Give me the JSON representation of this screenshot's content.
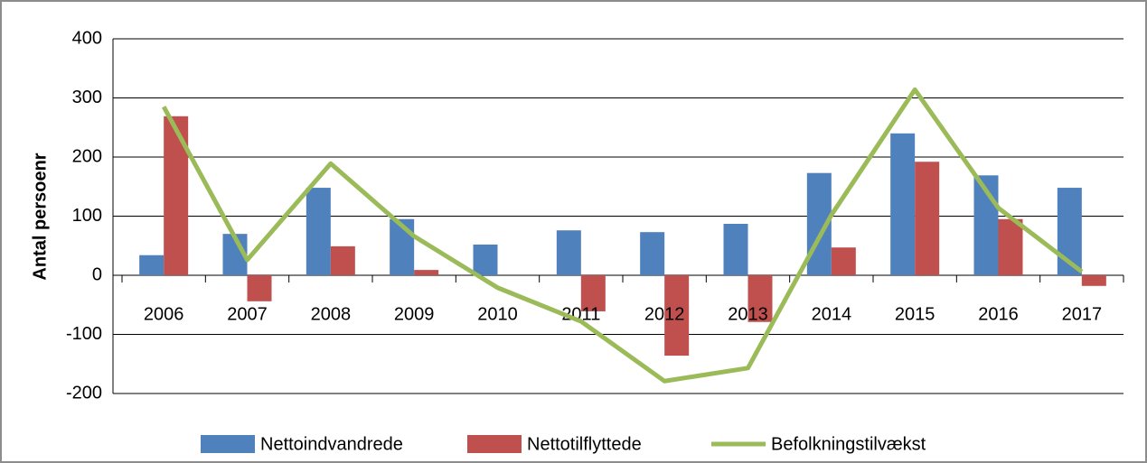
{
  "chart_data": {
    "type": "bar+line",
    "y_label": "Antal persoenr",
    "categories": [
      "2006",
      "2007",
      "2008",
      "2009",
      "2010",
      "2011",
      "2012",
      "2013",
      "2014",
      "2015",
      "2016",
      "2017"
    ],
    "series": [
      {
        "name": "Nettoindvandrede",
        "type": "bar",
        "color": "#4f81bd",
        "values": [
          34,
          70,
          148,
          95,
          52,
          76,
          73,
          87,
          173,
          240,
          169,
          148
        ]
      },
      {
        "name": "Nettotilflyttede",
        "type": "bar",
        "color": "#c0504d",
        "values": [
          269,
          -44,
          49,
          9,
          0,
          -61,
          -136,
          -79,
          47,
          192,
          95,
          -18
        ]
      },
      {
        "name": "Befolkningstilvækst",
        "type": "line",
        "color": "#9bbb59",
        "values": [
          285,
          26,
          189,
          66,
          -21,
          -78,
          -179,
          -157,
          102,
          314,
          114,
          6
        ]
      }
    ],
    "ylim": [
      -200,
      400
    ],
    "yticks": [
      -200,
      -100,
      0,
      100,
      200,
      300,
      400
    ],
    "grid": true
  }
}
